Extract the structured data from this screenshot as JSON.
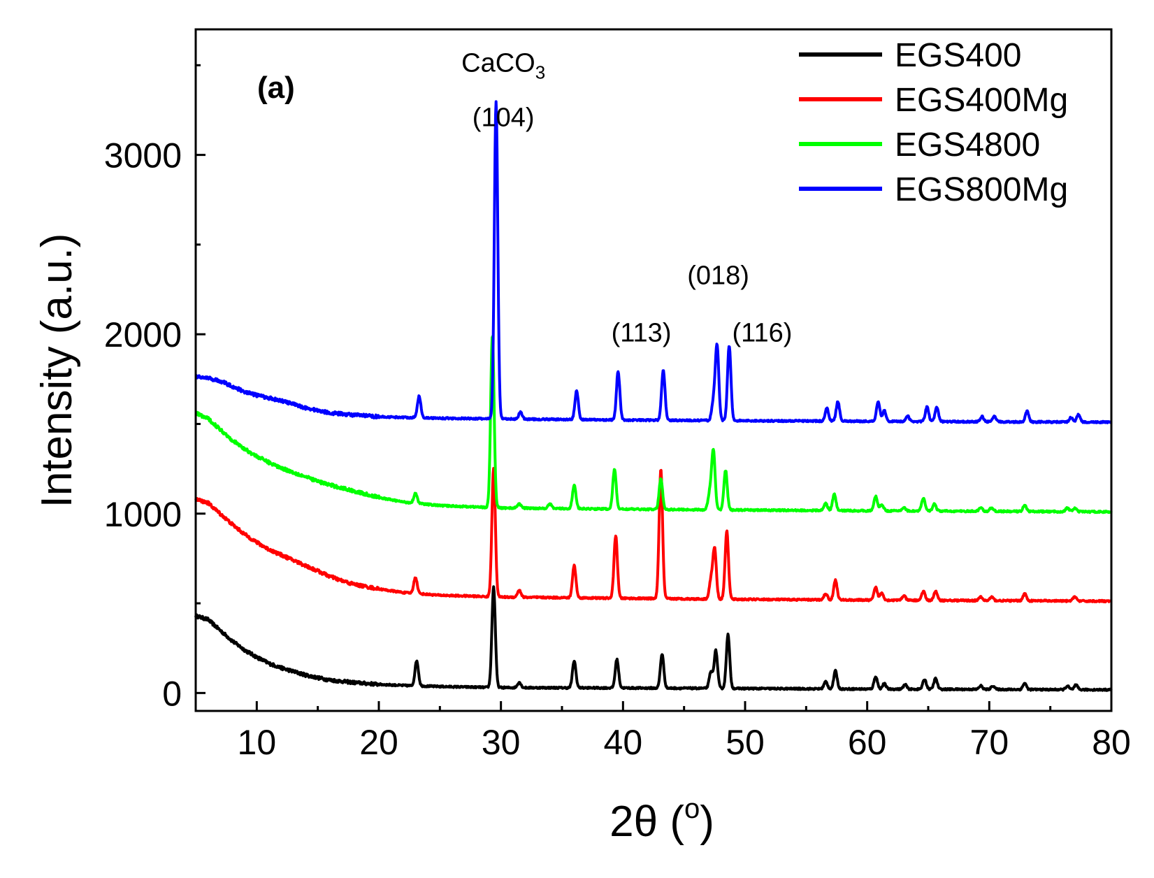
{
  "chart_data": {
    "type": "line",
    "panel_label": "(a)",
    "xlabel": "2θ (°)",
    "xlabel_main": "2θ (",
    "xlabel_sup": "o",
    "xlabel_close": ")",
    "ylabel": "Intensity (a.u.)",
    "xlim": [
      5,
      80
    ],
    "ylim": [
      -100,
      3700
    ],
    "xticks": [
      10,
      20,
      30,
      40,
      50,
      60,
      70,
      80
    ],
    "yticks": [
      0,
      1000,
      2000,
      3000
    ],
    "legend_position": "top-right",
    "series": [
      {
        "name": "EGS400",
        "color": "#000000",
        "offset": 0,
        "baseline": [
          [
            5,
            430
          ],
          [
            6,
            410
          ],
          [
            7,
            350
          ],
          [
            8,
            290
          ],
          [
            9,
            240
          ],
          [
            10,
            200
          ],
          [
            11,
            165
          ],
          [
            12,
            140
          ],
          [
            13,
            120
          ],
          [
            14,
            100
          ],
          [
            15,
            85
          ],
          [
            16,
            72
          ],
          [
            18,
            58
          ],
          [
            20,
            48
          ],
          [
            22,
            42
          ],
          [
            25,
            36
          ],
          [
            30,
            30
          ],
          [
            40,
            28
          ],
          [
            50,
            25
          ],
          [
            60,
            22
          ],
          [
            70,
            20
          ],
          [
            80,
            18
          ]
        ],
        "peaks": [
          [
            23.1,
            140
          ],
          [
            29.4,
            560
          ],
          [
            31.5,
            30
          ],
          [
            36.0,
            150
          ],
          [
            39.5,
            160
          ],
          [
            43.2,
            190
          ],
          [
            47.2,
            90
          ],
          [
            47.6,
            210
          ],
          [
            48.6,
            300
          ],
          [
            56.6,
            40
          ],
          [
            57.4,
            100
          ],
          [
            60.7,
            70
          ],
          [
            61.4,
            30
          ],
          [
            63.1,
            25
          ],
          [
            64.7,
            55
          ],
          [
            65.6,
            60
          ],
          [
            69.3,
            20
          ],
          [
            70.3,
            20
          ],
          [
            72.9,
            35
          ],
          [
            76.4,
            20
          ],
          [
            77.1,
            25
          ]
        ]
      },
      {
        "name": "EGS400Mg",
        "color": "#ff0000",
        "offset": 500,
        "baseline": [
          [
            5,
            580
          ],
          [
            6,
            560
          ],
          [
            7,
            500
          ],
          [
            8,
            440
          ],
          [
            9,
            385
          ],
          [
            10,
            340
          ],
          [
            11,
            300
          ],
          [
            12,
            270
          ],
          [
            13,
            240
          ],
          [
            14,
            210
          ],
          [
            15,
            180
          ],
          [
            16,
            150
          ],
          [
            17,
            125
          ],
          [
            18,
            105
          ],
          [
            20,
            80
          ],
          [
            22,
            60
          ],
          [
            25,
            45
          ],
          [
            30,
            35
          ],
          [
            40,
            28
          ],
          [
            50,
            22
          ],
          [
            60,
            18
          ],
          [
            70,
            15
          ],
          [
            80,
            12
          ]
        ],
        "peaks": [
          [
            23.0,
            90
          ],
          [
            29.4,
            720
          ],
          [
            31.5,
            40
          ],
          [
            36.0,
            180
          ],
          [
            39.4,
            350
          ],
          [
            43.1,
            720
          ],
          [
            47.2,
            100
          ],
          [
            47.5,
            280
          ],
          [
            48.5,
            380
          ],
          [
            56.6,
            35
          ],
          [
            57.4,
            110
          ],
          [
            60.7,
            70
          ],
          [
            61.2,
            40
          ],
          [
            63.0,
            25
          ],
          [
            64.6,
            50
          ],
          [
            65.6,
            50
          ],
          [
            69.3,
            20
          ],
          [
            70.2,
            20
          ],
          [
            72.9,
            40
          ],
          [
            77.0,
            25
          ]
        ]
      },
      {
        "name": "EGS4800",
        "color": "#00ff00",
        "offset": 1000,
        "baseline": [
          [
            5,
            560
          ],
          [
            6,
            530
          ],
          [
            7,
            470
          ],
          [
            8,
            410
          ],
          [
            9,
            360
          ],
          [
            10,
            320
          ],
          [
            11,
            285
          ],
          [
            12,
            255
          ],
          [
            13,
            230
          ],
          [
            14,
            205
          ],
          [
            15,
            180
          ],
          [
            16,
            160
          ],
          [
            18,
            125
          ],
          [
            20,
            90
          ],
          [
            22,
            65
          ],
          [
            25,
            45
          ],
          [
            30,
            32
          ],
          [
            40,
            25
          ],
          [
            50,
            20
          ],
          [
            60,
            16
          ],
          [
            70,
            13
          ],
          [
            80,
            10
          ]
        ],
        "peaks": [
          [
            23.0,
            55
          ],
          [
            29.3,
            960
          ],
          [
            31.5,
            25
          ],
          [
            34.0,
            25
          ],
          [
            36.0,
            130
          ],
          [
            39.3,
            220
          ],
          [
            43.1,
            170
          ],
          [
            47.1,
            90
          ],
          [
            47.4,
            330
          ],
          [
            48.4,
            220
          ],
          [
            56.6,
            40
          ],
          [
            57.3,
            90
          ],
          [
            60.7,
            80
          ],
          [
            61.2,
            35
          ],
          [
            63.0,
            20
          ],
          [
            64.6,
            70
          ],
          [
            65.5,
            40
          ],
          [
            69.3,
            20
          ],
          [
            70.2,
            20
          ],
          [
            72.9,
            35
          ],
          [
            76.4,
            20
          ],
          [
            77.0,
            20
          ]
        ]
      },
      {
        "name": "EGS800Mg",
        "color": "#0000ff",
        "offset": 1500,
        "baseline": [
          [
            5,
            265
          ],
          [
            6,
            255
          ],
          [
            7,
            240
          ],
          [
            8,
            210
          ],
          [
            9,
            180
          ],
          [
            10,
            160
          ],
          [
            11,
            145
          ],
          [
            12,
            130
          ],
          [
            13,
            110
          ],
          [
            14,
            90
          ],
          [
            15,
            75
          ],
          [
            16,
            62
          ],
          [
            18,
            50
          ],
          [
            20,
            40
          ],
          [
            25,
            32
          ],
          [
            30,
            28
          ],
          [
            40,
            22
          ],
          [
            50,
            18
          ],
          [
            60,
            15
          ],
          [
            70,
            12
          ],
          [
            80,
            10
          ]
        ],
        "peaks": [
          [
            23.3,
            120
          ],
          [
            29.6,
            1770
          ],
          [
            31.6,
            40
          ],
          [
            36.2,
            160
          ],
          [
            39.6,
            270
          ],
          [
            43.3,
            280
          ],
          [
            47.4,
            100
          ],
          [
            47.7,
            420
          ],
          [
            48.7,
            420
          ],
          [
            56.7,
            70
          ],
          [
            57.6,
            110
          ],
          [
            60.9,
            110
          ],
          [
            61.4,
            60
          ],
          [
            63.3,
            30
          ],
          [
            64.9,
            80
          ],
          [
            65.7,
            80
          ],
          [
            69.4,
            30
          ],
          [
            70.4,
            30
          ],
          [
            73.1,
            60
          ],
          [
            76.7,
            25
          ],
          [
            77.3,
            40
          ]
        ]
      }
    ],
    "annotations": [
      {
        "text": "CaCO",
        "sub": "3",
        "x": 30.2,
        "y": 3465
      },
      {
        "text": "(104)",
        "x": 30.2,
        "y": 3160
      },
      {
        "text": "(018)",
        "x": 47.8,
        "y": 2280
      },
      {
        "text": "(113)",
        "x": 41.5,
        "y": 1960
      },
      {
        "text": "(116)",
        "x": 51.4,
        "y": 1960
      }
    ]
  }
}
